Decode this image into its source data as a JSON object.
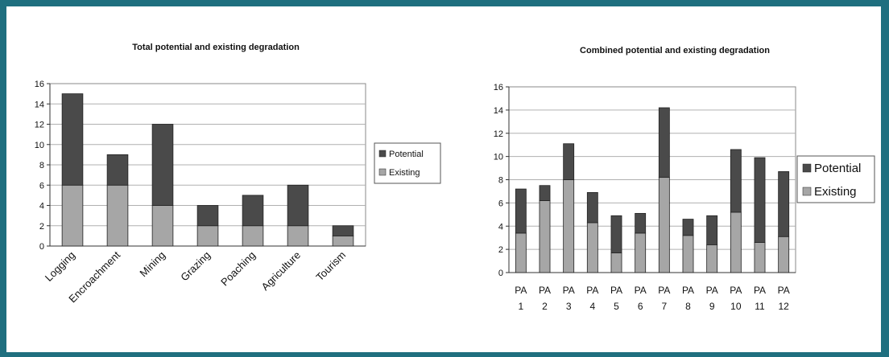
{
  "colors": {
    "frame": "#1f6f7f",
    "potential": "#4a4a4a",
    "existing": "#a6a6a6",
    "plot_bg": "#ffffff",
    "grid": "#b0b0b0"
  },
  "chart_data": [
    {
      "type": "bar",
      "stacked": true,
      "title": "Total potential and existing degradation",
      "xlabel": "",
      "ylabel": "",
      "ylim": [
        0,
        16
      ],
      "yticks": [
        "0",
        "2",
        "4",
        "6",
        "8",
        "10",
        "12",
        "14",
        "16"
      ],
      "grid": true,
      "legend_position": "right",
      "categories": [
        "Logging",
        "Encroachment",
        "Mining",
        "Grazing",
        "Poaching",
        "Agriculture",
        "Tourism"
      ],
      "series": [
        {
          "name": "Existing",
          "values": [
            6,
            6,
            4,
            2,
            2,
            2,
            1
          ]
        },
        {
          "name": "Potential",
          "values": [
            9,
            3,
            8,
            2,
            3,
            4,
            1
          ]
        }
      ]
    },
    {
      "type": "bar",
      "stacked": true,
      "title": "Combined potential and existing degradation",
      "xlabel": "",
      "ylabel": "",
      "ylim": [
        0,
        16
      ],
      "yticks": [
        "0",
        "2",
        "4",
        "6",
        "8",
        "10",
        "12",
        "14",
        "16"
      ],
      "grid": true,
      "legend_position": "right",
      "categories": [
        [
          "PA",
          "1"
        ],
        [
          "PA",
          "2"
        ],
        [
          "PA",
          "3"
        ],
        [
          "PA",
          "4"
        ],
        [
          "PA",
          "5"
        ],
        [
          "PA",
          "6"
        ],
        [
          "PA",
          "7"
        ],
        [
          "PA",
          "8"
        ],
        [
          "PA",
          "9"
        ],
        [
          "PA",
          "10"
        ],
        [
          "PA",
          "11"
        ],
        [
          "PA",
          "12"
        ]
      ],
      "series": [
        {
          "name": "Existing",
          "values": [
            3.4,
            6.2,
            8.0,
            4.3,
            1.7,
            3.4,
            8.2,
            3.2,
            2.4,
            5.2,
            2.6,
            3.1
          ]
        },
        {
          "name": "Potential",
          "values": [
            3.8,
            1.3,
            3.1,
            2.6,
            3.2,
            1.7,
            6.0,
            1.4,
            2.5,
            5.4,
            7.3,
            5.6
          ]
        }
      ]
    }
  ]
}
